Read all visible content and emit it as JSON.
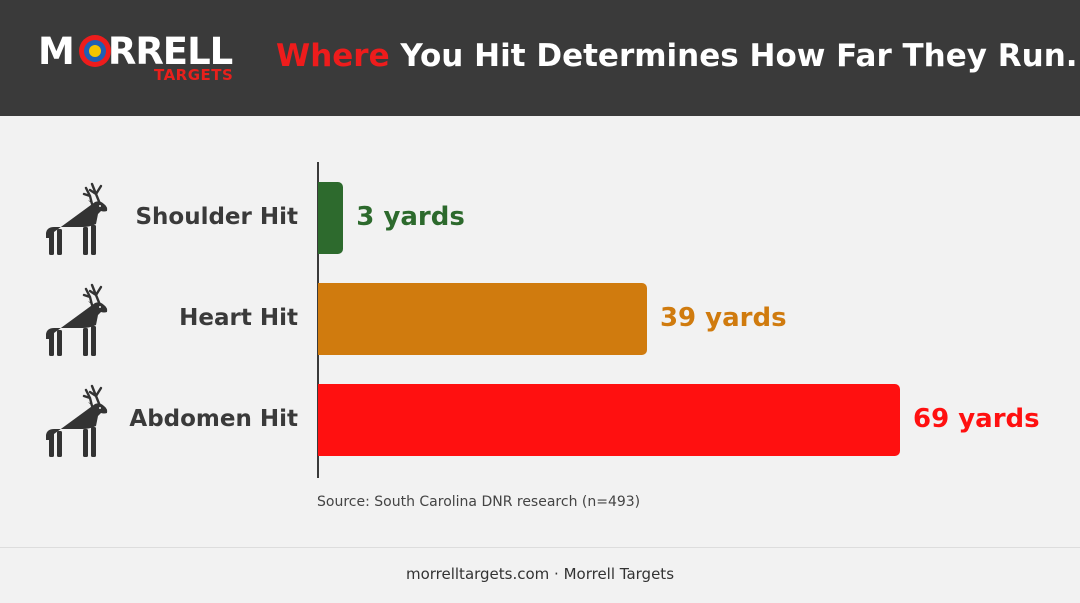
{
  "header": {
    "logo_main": "MORRELL",
    "logo_sub": "TARGETS",
    "title_highlight": "Where",
    "title_rest": " You Hit Determines How Far They Run."
  },
  "colors": {
    "header_bg": "#3a3a3a",
    "accent_red": "#ee1c1c",
    "shoulder": "#2d6a2d",
    "heart": "#d07b0e",
    "abdomen": "#ff1010"
  },
  "chart_data": {
    "type": "bar",
    "orientation": "horizontal",
    "categories": [
      "Shoulder Hit",
      "Heart Hit",
      "Abdomen Hit"
    ],
    "values": [
      3,
      39,
      69
    ],
    "value_labels": [
      "3 yards",
      "39 yards",
      "69 yards"
    ],
    "bar_colors": [
      "#2d6a2d",
      "#d07b0e",
      "#ff1010"
    ],
    "category_icon": "deer-icon",
    "xlim": [
      0,
      69
    ],
    "grid": false,
    "legend": "none"
  },
  "source": "Source: South Carolina DNR research (n=493)",
  "footer": "morrelltargets.com · Morrell Targets"
}
